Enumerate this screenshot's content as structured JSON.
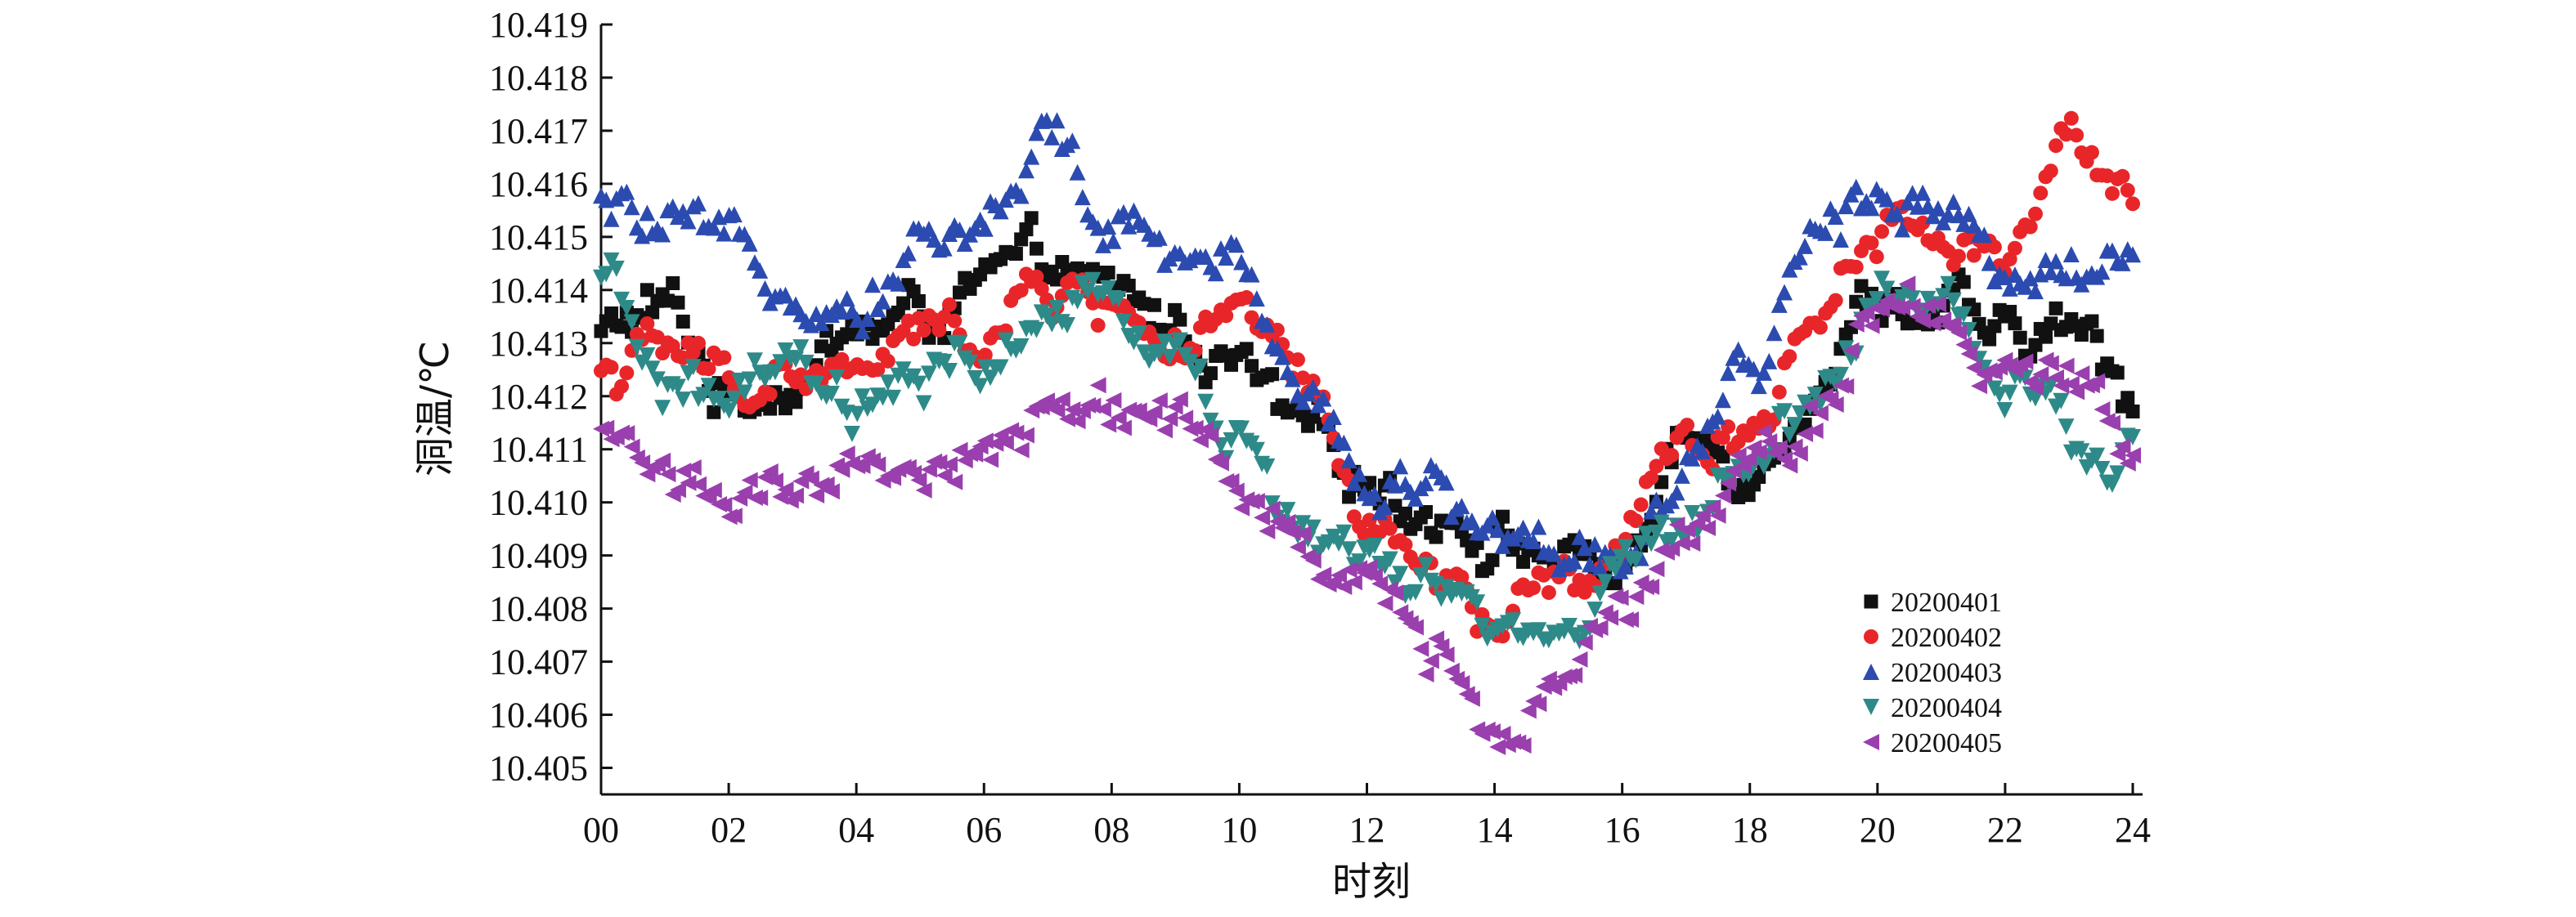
{
  "chart_data": {
    "type": "scatter",
    "title": "",
    "xlabel": "时刻",
    "ylabel": "洞温/℃",
    "xlim": [
      0,
      24
    ],
    "ylim": [
      10.4045,
      10.419
    ],
    "x_ticks": [
      "00",
      "02",
      "04",
      "06",
      "08",
      "10",
      "12",
      "14",
      "16",
      "18",
      "20",
      "22",
      "24"
    ],
    "x_tick_values": [
      0,
      2,
      4,
      6,
      8,
      10,
      12,
      14,
      16,
      18,
      20,
      22,
      24
    ],
    "y_ticks": [
      "10.405",
      "10.406",
      "10.407",
      "10.408",
      "10.409",
      "10.410",
      "10.411",
      "10.412",
      "10.413",
      "10.414",
      "10.415",
      "10.416",
      "10.417",
      "10.418",
      "10.419"
    ],
    "y_tick_values": [
      10.405,
      10.406,
      10.407,
      10.408,
      10.409,
      10.41,
      10.411,
      10.412,
      10.413,
      10.414,
      10.415,
      10.416,
      10.417,
      10.418,
      10.419
    ],
    "grid": false,
    "legend_position": "bottom-right",
    "x_unit": "hour",
    "series": [
      {
        "name": "20200401",
        "marker": "square",
        "color": "#111111",
        "x": [
          0,
          1,
          2,
          3,
          4,
          5,
          6,
          7,
          8,
          9,
          10,
          11,
          12,
          13,
          14,
          15,
          16,
          17,
          18,
          19,
          20,
          21,
          22,
          23,
          24
        ],
        "y": [
          10.4132,
          10.4136,
          10.412,
          10.4125,
          10.4132,
          10.4135,
          10.414,
          10.4143,
          10.4137,
          10.4133,
          10.4125,
          10.411,
          10.4105,
          10.41,
          10.4095,
          10.409,
          10.4088,
          10.411,
          10.4108,
          10.4125,
          10.414,
          10.4137,
          10.4128,
          10.4132,
          10.412
        ]
      },
      {
        "name": "20200402",
        "marker": "circle",
        "color": "#e8262a",
        "x": [
          0,
          1,
          2,
          3,
          4,
          5,
          6,
          7,
          8,
          9,
          10,
          11,
          12,
          13,
          14,
          15,
          16,
          17,
          18,
          19,
          20,
          21,
          22,
          23,
          24
        ],
        "y": [
          10.4125,
          10.4128,
          10.4122,
          10.4125,
          10.4123,
          10.413,
          10.4132,
          10.414,
          10.4138,
          10.413,
          10.4132,
          10.412,
          10.4095,
          10.4085,
          10.4076,
          10.4082,
          10.409,
          10.411,
          10.4115,
          10.4135,
          10.4155,
          10.415,
          10.4148,
          10.417,
          10.4155
        ]
      },
      {
        "name": "20200403",
        "marker": "triangle-up",
        "color": "#2b4bb0",
        "x": [
          0,
          1,
          2,
          3,
          4,
          5,
          6,
          7,
          8,
          9,
          10,
          11,
          12,
          13,
          14,
          15,
          16,
          17,
          18,
          19,
          20,
          21,
          22,
          23,
          24
        ],
        "y": [
          10.4155,
          10.415,
          10.4145,
          10.4143,
          10.414,
          10.415,
          10.4152,
          10.417,
          10.415,
          10.4145,
          10.4143,
          10.4125,
          10.4107,
          10.4102,
          10.4095,
          10.409,
          10.4092,
          10.4105,
          10.412,
          10.415,
          10.4158,
          10.416,
          10.4145,
          10.4145,
          10.4145
        ]
      },
      {
        "name": "20200404",
        "marker": "triangle-down",
        "color": "#2e8a88",
        "x": [
          0,
          1,
          2,
          3,
          4,
          5,
          6,
          7,
          8,
          9,
          10,
          11,
          12,
          13,
          14,
          15,
          16,
          17,
          18,
          19,
          20,
          21,
          22,
          23,
          24
        ],
        "y": [
          10.414,
          10.4122,
          10.4118,
          10.4122,
          10.4115,
          10.412,
          10.4125,
          10.4135,
          10.4133,
          10.413,
          10.411,
          10.4095,
          10.4088,
          10.408,
          10.4075,
          10.4073,
          10.4085,
          10.4098,
          10.4108,
          10.412,
          10.4138,
          10.414,
          10.412,
          10.411,
          10.411
        ]
      },
      {
        "name": "20200405",
        "marker": "triangle-left",
        "color": "#9a3fae",
        "x": [
          0,
          1,
          2,
          3,
          4,
          5,
          6,
          7,
          8,
          9,
          10,
          11,
          12,
          13,
          14,
          15,
          16,
          17,
          18,
          19,
          20,
          21,
          22,
          23,
          24
        ],
        "y": [
          10.4112,
          10.4108,
          10.4102,
          10.4097,
          10.4102,
          10.4108,
          10.411,
          10.4115,
          10.412,
          10.4115,
          10.41,
          10.409,
          10.4082,
          10.4072,
          10.4058,
          10.4068,
          10.4085,
          10.4098,
          10.4108,
          10.4118,
          10.414,
          10.414,
          10.4123,
          10.4123,
          10.4113
        ]
      }
    ]
  }
}
